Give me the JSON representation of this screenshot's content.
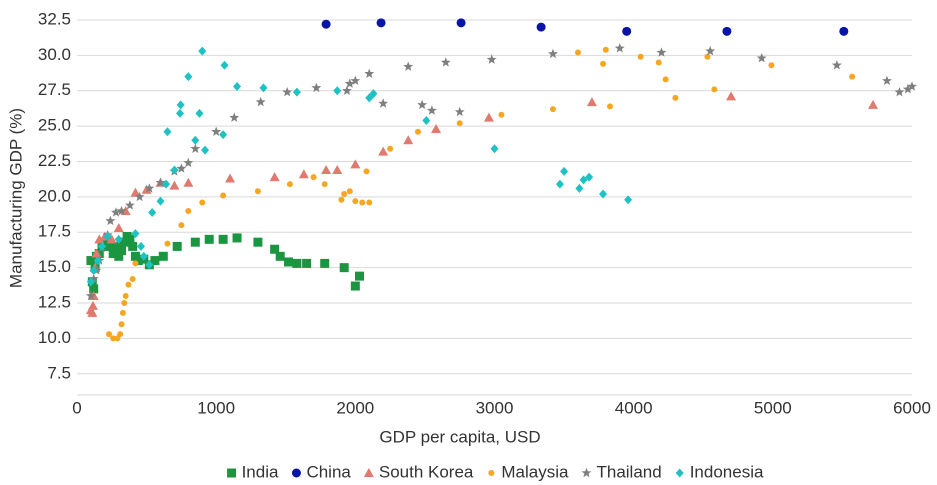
{
  "chart_data": {
    "type": "scatter",
    "x_label": "GDP per capita, USD",
    "y_label": "Manufacturing GDP (%)",
    "xlim": [
      0,
      6000
    ],
    "xticks": [
      0,
      1000,
      2000,
      3000,
      4000,
      5000,
      6000
    ],
    "ylim": [
      6,
      33
    ],
    "yticks": [
      7.5,
      {
        "value": 10,
        "label": "10.0"
      },
      12.5,
      {
        "value": 15,
        "label": "15.0"
      },
      17.5,
      {
        "value": 20,
        "label": "20.0"
      },
      22.5,
      {
        "value": 25,
        "label": "25.0"
      },
      27.5,
      {
        "value": 30,
        "label": "30.0"
      },
      32.5
    ],
    "grid": true,
    "legend": "bottom",
    "series": [
      {
        "name": "India",
        "color": "#1a9641",
        "marker": "square",
        "x": [
          100,
          110,
          120,
          130,
          140,
          160,
          180,
          200,
          230,
          260,
          280,
          300,
          320,
          340,
          360,
          380,
          400,
          420,
          440,
          480,
          520,
          560,
          620,
          720,
          850,
          950,
          1050,
          1150,
          1300,
          1420,
          1460,
          1520,
          1580,
          1650,
          1780,
          1920,
          2000,
          2030
        ],
        "values": [
          15.5,
          14.0,
          13.5,
          15.0,
          15.8,
          16.0,
          16.5,
          16.8,
          16.5,
          16.0,
          16.5,
          15.8,
          16.2,
          16.8,
          17.2,
          17.0,
          16.5,
          15.8,
          15.5,
          15.6,
          15.2,
          15.5,
          15.8,
          16.5,
          16.8,
          17.0,
          17.0,
          17.1,
          16.8,
          16.3,
          15.8,
          15.4,
          15.3,
          15.3,
          15.3,
          15.0,
          13.7,
          14.4
        ]
      },
      {
        "name": "China",
        "color": "#0b14a8",
        "marker": "circle",
        "x": [
          1790,
          2185,
          2760,
          3335,
          3950,
          4670,
          5510
        ],
        "values": [
          32.2,
          32.3,
          32.3,
          32.0,
          31.7,
          31.7,
          31.7
        ]
      },
      {
        "name": "South Korea",
        "color": "#e07a6e",
        "marker": "triangle",
        "x": [
          100,
          110,
          115,
          120,
          130,
          140,
          160,
          200,
          250,
          300,
          350,
          420,
          500,
          600,
          700,
          800,
          1100,
          1420,
          1630,
          1790,
          1870,
          2000,
          2200,
          2380,
          2580,
          2960,
          3700,
          4700,
          5720
        ],
        "values": [
          12.0,
          11.8,
          12.3,
          13.0,
          15.0,
          16.0,
          17.0,
          17.2,
          17.0,
          17.8,
          19.0,
          20.3,
          20.5,
          21.0,
          20.8,
          21.0,
          21.3,
          21.4,
          21.6,
          21.9,
          21.9,
          22.3,
          23.2,
          24.0,
          24.8,
          25.6,
          26.7,
          27.1,
          26.5
        ]
      },
      {
        "name": "Malaysia",
        "color": "#f5a623",
        "marker": "dot",
        "x": [
          230,
          260,
          290,
          310,
          320,
          330,
          340,
          350,
          370,
          400,
          420,
          650,
          750,
          800,
          900,
          1050,
          1300,
          1530,
          1700,
          1780,
          1900,
          1920,
          1960,
          2000,
          2050,
          2100,
          2080,
          2250,
          2450,
          2750,
          3050,
          3420,
          3600,
          3780,
          3800,
          3830,
          4050,
          4180,
          4230,
          4300,
          4530,
          4580,
          4990,
          5570
        ],
        "values": [
          10.3,
          10.0,
          10.0,
          10.3,
          11.0,
          11.8,
          12.5,
          13.0,
          13.8,
          14.2,
          15.3,
          16.7,
          18.0,
          19.0,
          19.6,
          20.1,
          20.4,
          20.9,
          21.4,
          20.9,
          19.8,
          20.2,
          20.4,
          19.7,
          19.6,
          19.6,
          21.8,
          23.4,
          24.6,
          25.2,
          25.8,
          26.2,
          30.2,
          29.4,
          30.4,
          26.4,
          29.9,
          29.5,
          28.3,
          27.0,
          29.9,
          27.6,
          29.3,
          28.5
        ]
      },
      {
        "name": "Thailand",
        "color": "#7f7f7f",
        "marker": "star",
        "x": [
          100,
          120,
          140,
          160,
          180,
          220,
          240,
          280,
          320,
          380,
          450,
          520,
          600,
          700,
          750,
          800,
          850,
          1000,
          1130,
          1320,
          1510,
          1720,
          1940,
          1960,
          2000,
          2100,
          2200,
          2380,
          2480,
          2550,
          2650,
          2750,
          2980,
          3420,
          3900,
          4200,
          4550,
          4920,
          5460,
          5820,
          5910,
          5970,
          6000
        ],
        "values": [
          13.0,
          14.2,
          14.8,
          15.5,
          16.4,
          17.3,
          18.3,
          18.9,
          19.0,
          19.4,
          20.0,
          20.6,
          21.0,
          21.8,
          22.0,
          22.4,
          23.4,
          24.6,
          25.6,
          26.7,
          27.4,
          27.7,
          27.5,
          28.0,
          28.2,
          28.7,
          26.6,
          29.2,
          26.5,
          26.1,
          29.5,
          26.0,
          29.7,
          30.1,
          30.5,
          30.2,
          30.3,
          29.8,
          29.3,
          28.2,
          27.4,
          27.6,
          27.8
        ]
      },
      {
        "name": "Indonesia",
        "color": "#1fc2c2",
        "marker": "diamond",
        "x": [
          100,
          120,
          150,
          180,
          220,
          300,
          420,
          460,
          480,
          520,
          540,
          600,
          640,
          650,
          700,
          740,
          745,
          800,
          850,
          880,
          900,
          920,
          1050,
          1060,
          1150,
          1340,
          1580,
          1870,
          2100,
          2130,
          2510,
          3000,
          3470,
          3500,
          3610,
          3640,
          3680,
          3780,
          3960
        ],
        "values": [
          14.0,
          14.8,
          15.5,
          16.5,
          17.2,
          17.0,
          17.4,
          16.5,
          15.8,
          15.2,
          18.9,
          19.7,
          20.9,
          24.6,
          21.9,
          25.9,
          26.5,
          28.5,
          24.0,
          25.9,
          30.3,
          23.3,
          24.4,
          29.3,
          27.8,
          27.7,
          27.4,
          27.5,
          27.0,
          27.3,
          25.4,
          23.4,
          20.9,
          21.8,
          20.6,
          21.2,
          21.4,
          20.2,
          19.8
        ]
      }
    ]
  }
}
